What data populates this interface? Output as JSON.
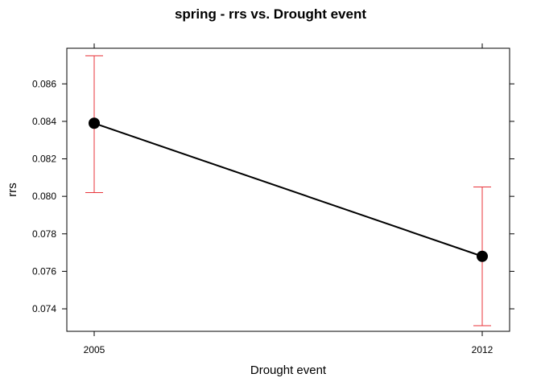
{
  "chart_data": {
    "type": "line",
    "title": "spring - rrs vs. Drought event",
    "xlabel": "Drought event",
    "ylabel": "rrs",
    "categories": [
      "2005",
      "2012"
    ],
    "series": [
      {
        "values": [
          0.0839,
          0.0768
        ],
        "lower": [
          0.0802,
          0.0731
        ],
        "upper": [
          0.0875,
          0.0805
        ],
        "color": "#000000",
        "error_bar_color": "#e8333a"
      }
    ],
    "yticks": [
      0.074,
      0.076,
      0.078,
      0.08,
      0.082,
      0.084,
      0.086
    ],
    "ytick_labels": [
      "0.074",
      "0.076",
      "0.078",
      "0.080",
      "0.082",
      "0.084",
      "0.086"
    ],
    "ylim": [
      0.0728,
      0.0879
    ],
    "grid": false
  }
}
